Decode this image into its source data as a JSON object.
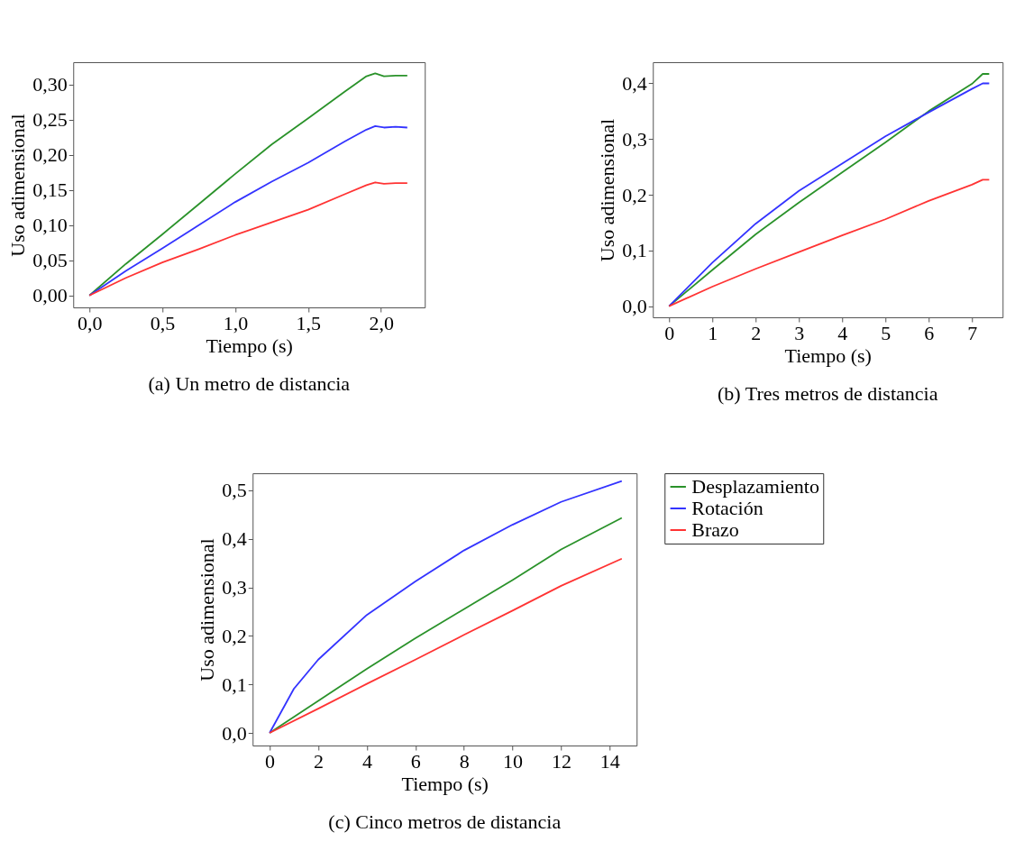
{
  "chart_data": [
    {
      "type": "line",
      "title": "(a) Un metro de distancia",
      "xlabel": "Tiempo (s)",
      "ylabel": "Uso adimensional",
      "xlim": [
        -0.111,
        2.3
      ],
      "ylim": [
        -0.017,
        0.332
      ],
      "xticks": [
        {
          "value": 0,
          "label": "0,0"
        },
        {
          "value": 0.5,
          "label": "0,5"
        },
        {
          "value": 1,
          "label": "1,0"
        },
        {
          "value": 1.5,
          "label": "1,5"
        },
        {
          "value": 2,
          "label": "2,0"
        }
      ],
      "yticks": [
        {
          "value": 0,
          "label": "0,00"
        },
        {
          "value": 0.05,
          "label": "0,05"
        },
        {
          "value": 0.1,
          "label": "0,10"
        },
        {
          "value": 0.15,
          "label": "0,15"
        },
        {
          "value": 0.2,
          "label": "0,20"
        },
        {
          "value": 0.25,
          "label": "0,25"
        },
        {
          "value": 0.3,
          "label": "0,30"
        }
      ],
      "grid": false,
      "legend": false,
      "series": [
        {
          "color": "#2a922a",
          "x": [
            0,
            0.25,
            0.5,
            0.75,
            1.0,
            1.25,
            1.5,
            1.75,
            1.9,
            1.96,
            2.02,
            2.1,
            2.18
          ],
          "values": [
            0,
            0.045,
            0.087,
            0.13,
            0.173,
            0.215,
            0.252,
            0.29,
            0.312,
            0.316,
            0.312,
            0.313,
            0.313
          ]
        },
        {
          "color": "#3333ff",
          "x": [
            0,
            0.25,
            0.5,
            0.75,
            1.0,
            1.25,
            1.5,
            1.75,
            1.9,
            1.96,
            2.02,
            2.1,
            2.18
          ],
          "values": [
            0,
            0.035,
            0.067,
            0.1,
            0.133,
            0.162,
            0.189,
            0.219,
            0.236,
            0.241,
            0.239,
            0.24,
            0.239
          ]
        },
        {
          "color": "#ff3333",
          "x": [
            0,
            0.25,
            0.5,
            0.75,
            1.0,
            1.25,
            1.5,
            1.75,
            1.9,
            1.96,
            2.02,
            2.1,
            2.18
          ],
          "values": [
            0,
            0.025,
            0.047,
            0.066,
            0.086,
            0.104,
            0.122,
            0.144,
            0.157,
            0.161,
            0.159,
            0.16,
            0.16
          ]
        }
      ]
    },
    {
      "type": "line",
      "title": "(b) Tres metros de distancia",
      "xlabel": "Tiempo (s)",
      "ylabel": "Uso adimensional",
      "xlim": [
        -0.375,
        7.71
      ],
      "ylim": [
        -0.02,
        0.438
      ],
      "xticks": [
        0,
        1,
        2,
        3,
        4,
        5,
        6,
        7
      ],
      "yticks": [
        {
          "value": 0,
          "label": "0,0"
        },
        {
          "value": 0.1,
          "label": "0,1"
        },
        {
          "value": 0.2,
          "label": "0,2"
        },
        {
          "value": 0.3,
          "label": "0,3"
        },
        {
          "value": 0.4,
          "label": "0,4"
        }
      ],
      "grid": false,
      "legend": false,
      "series": [
        {
          "color": "#2a922a",
          "x": [
            0,
            1,
            2,
            3,
            4,
            5,
            6,
            7,
            7.25,
            7.4
          ],
          "values": [
            0,
            0.065,
            0.129,
            0.186,
            0.24,
            0.294,
            0.35,
            0.399,
            0.417,
            0.417
          ]
        },
        {
          "color": "#3333ff",
          "x": [
            0,
            1,
            2,
            3,
            4,
            5,
            6,
            7,
            7.25,
            7.4
          ],
          "values": [
            0,
            0.078,
            0.148,
            0.207,
            0.256,
            0.305,
            0.348,
            0.39,
            0.4,
            0.4
          ]
        },
        {
          "color": "#ff3333",
          "x": [
            0,
            1,
            2,
            3,
            4,
            5,
            6,
            7,
            7.25,
            7.4
          ],
          "values": [
            0,
            0.035,
            0.067,
            0.097,
            0.127,
            0.156,
            0.189,
            0.218,
            0.227,
            0.227
          ]
        }
      ]
    },
    {
      "type": "line",
      "title": "(c) Cinco metros de distancia",
      "xlabel": "Tiempo (s)",
      "ylabel": "Uso adimensional",
      "xlim": [
        -0.7,
        15.11
      ],
      "ylim": [
        -0.026,
        0.535
      ],
      "xticks": [
        0,
        2,
        4,
        6,
        8,
        10,
        12,
        14
      ],
      "yticks": [
        {
          "value": 0,
          "label": "0,0"
        },
        {
          "value": 0.1,
          "label": "0,1"
        },
        {
          "value": 0.2,
          "label": "0,2"
        },
        {
          "value": 0.3,
          "label": "0,3"
        },
        {
          "value": 0.4,
          "label": "0,4"
        },
        {
          "value": 0.5,
          "label": "0,5"
        }
      ],
      "grid": false,
      "legend": "right",
      "series": [
        {
          "name": "Desplazamiento",
          "color": "#2a922a",
          "x": [
            0,
            2,
            4,
            6,
            8,
            10,
            12,
            14.5
          ],
          "values": [
            0,
            0.066,
            0.132,
            0.195,
            0.255,
            0.315,
            0.378,
            0.443
          ]
        },
        {
          "name": "Rotación",
          "color": "#3333ff",
          "x": [
            0,
            1,
            2,
            4,
            6,
            8,
            10,
            12,
            14.5
          ],
          "values": [
            0,
            0.091,
            0.151,
            0.243,
            0.312,
            0.376,
            0.429,
            0.476,
            0.519
          ]
        },
        {
          "name": "Brazo",
          "color": "#ff3333",
          "x": [
            0,
            2,
            4,
            6,
            8,
            10,
            12,
            14.5
          ],
          "values": [
            0,
            0.05,
            0.101,
            0.151,
            0.202,
            0.252,
            0.303,
            0.359
          ]
        }
      ]
    }
  ]
}
